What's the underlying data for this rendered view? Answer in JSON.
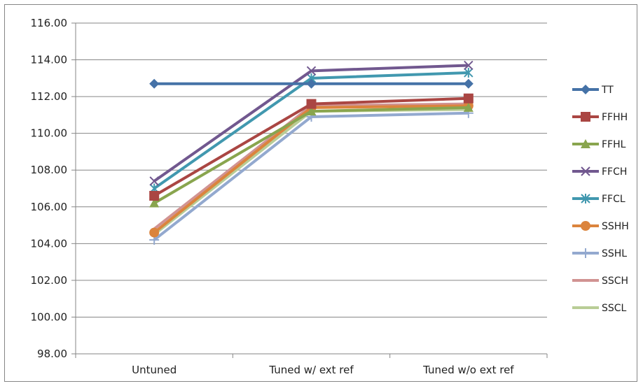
{
  "chart_data": {
    "type": "line",
    "title": "",
    "xlabel": "",
    "ylabel": "",
    "categories": [
      "Untuned",
      "Tuned w/ ext ref",
      "Tuned w/o ext ref"
    ],
    "ylim": [
      98,
      116
    ],
    "ytick_step": 2,
    "ytick_labels": [
      "98.00",
      "100.00",
      "102.00",
      "104.00",
      "106.00",
      "108.00",
      "110.00",
      "112.00",
      "114.00",
      "116.00"
    ],
    "grid": "horizontal",
    "legend_position": "right",
    "series": [
      {
        "name": "TT",
        "values": [
          112.7,
          112.7,
          112.7
        ],
        "color": "#4572A7",
        "marker": "diamond"
      },
      {
        "name": "FFHH",
        "values": [
          106.6,
          111.6,
          111.9
        ],
        "color": "#AA4643",
        "marker": "square"
      },
      {
        "name": "FFHL",
        "values": [
          106.2,
          111.2,
          111.4
        ],
        "color": "#89A54E",
        "marker": "triangle"
      },
      {
        "name": "FFCH",
        "values": [
          107.4,
          113.4,
          113.7
        ],
        "color": "#71588F",
        "marker": "x"
      },
      {
        "name": "FFCL",
        "values": [
          107.0,
          113.0,
          113.3
        ],
        "color": "#4198AF",
        "marker": "star"
      },
      {
        "name": "SSHH",
        "values": [
          104.6,
          111.4,
          111.5
        ],
        "color": "#DB843D",
        "marker": "circle"
      },
      {
        "name": "SSHL",
        "values": [
          104.2,
          110.9,
          111.1
        ],
        "color": "#93A9CF",
        "marker": "plus"
      },
      {
        "name": "SSCH",
        "values": [
          104.8,
          111.5,
          111.6
        ],
        "color": "#D19392",
        "marker": "none"
      },
      {
        "name": "SSCL",
        "values": [
          104.5,
          111.2,
          111.3
        ],
        "color": "#B9CD96",
        "marker": "none"
      }
    ]
  }
}
